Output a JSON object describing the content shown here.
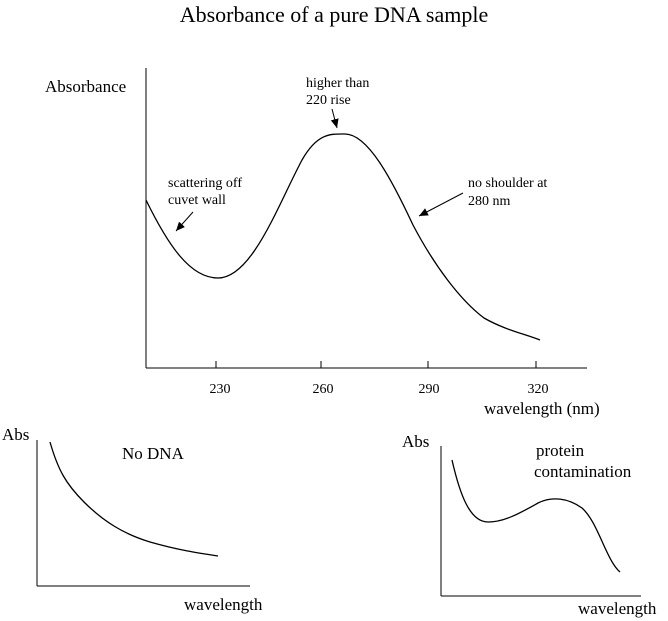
{
  "title": "Absorbance of a pure DNA sample",
  "main_chart": {
    "type": "line",
    "ylabel": "Absorbance",
    "xlabel": "wavelength (nm)",
    "xticks": [
      "230",
      "260",
      "290",
      "320"
    ],
    "annotations": {
      "scatter_1": "scattering off",
      "scatter_2": "cuvet wall",
      "peak_1": "higher than",
      "peak_2": "220 rise",
      "shoulder_1": "no shoulder at",
      "shoulder_2": "280 nm"
    }
  },
  "no_dna_chart": {
    "type": "line",
    "ylabel": "Abs",
    "xlabel": "wavelength",
    "label": "No DNA"
  },
  "protein_chart": {
    "type": "line",
    "ylabel": "Abs",
    "xlabel": "wavelength",
    "label_1": "protein",
    "label_2": "contamination"
  },
  "chart_data": [
    {
      "type": "line",
      "title": "Absorbance of a pure DNA sample",
      "xlabel": "wavelength (nm)",
      "ylabel": "Absorbance",
      "xlim": [
        210,
        335
      ],
      "x_ticks": [
        230,
        260,
        290,
        320
      ],
      "series": [
        {
          "x": [
            210,
            215,
            220,
            225,
            230,
            235,
            240,
            245,
            250,
            255,
            260,
            265,
            270,
            275,
            280,
            285,
            290,
            295,
            300,
            305,
            310,
            315,
            320
          ],
          "y": [
            0.65,
            0.55,
            0.47,
            0.42,
            0.43,
            0.48,
            0.57,
            0.69,
            0.81,
            0.92,
            1.0,
            1.0,
            0.93,
            0.8,
            0.66,
            0.54,
            0.44,
            0.34,
            0.25,
            0.18,
            0.14,
            0.11,
            0.09
          ]
        }
      ]
    },
    {
      "type": "line",
      "xlabel": "wavelength",
      "ylabel": "Abs",
      "series": [
        {
          "x": [
            0,
            1,
            2,
            3,
            4,
            5,
            6,
            7,
            8,
            9,
            10
          ],
          "y": [
            1.0,
            0.72,
            0.56,
            0.44,
            0.35,
            0.28,
            0.22,
            0.18,
            0.14,
            0.11,
            0.08
          ]
        }
      ]
    },
    {
      "type": "line",
      "xlabel": "wavelength",
      "ylabel": "Abs",
      "series": [
        {
          "x": [
            0,
            1,
            2,
            3,
            4,
            5,
            6,
            7,
            8,
            9,
            10
          ],
          "y": [
            1.0,
            0.65,
            0.57,
            0.58,
            0.64,
            0.72,
            0.74,
            0.7,
            0.58,
            0.37,
            0.18
          ]
        }
      ]
    }
  ]
}
